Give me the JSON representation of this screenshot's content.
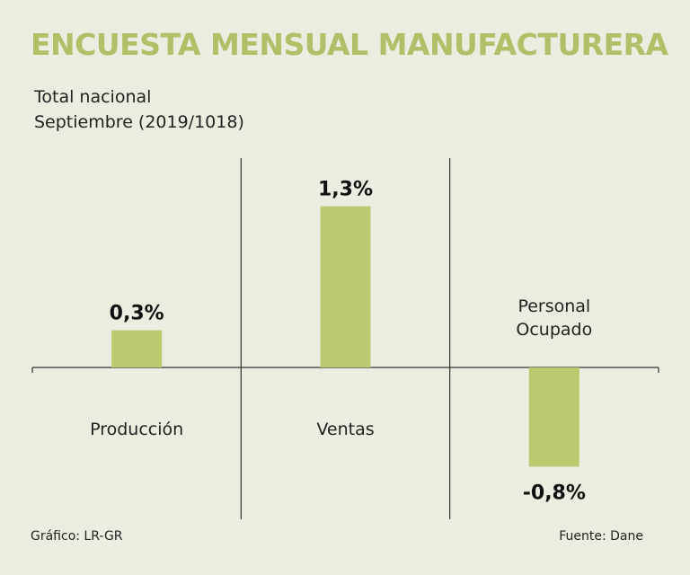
{
  "header": {
    "title": "ENCUESTA MENSUAL MANUFACTURERA",
    "subtitle_line1": "Total nacional",
    "subtitle_line2": "Septiembre (2019/1018)"
  },
  "footer": {
    "credit": "Gráfico: LR-GR",
    "source": "Fuente: Dane"
  },
  "colors": {
    "background": "#eaede0",
    "bar": "#bcc96e",
    "title": "#afc068",
    "axis": "#333333"
  },
  "chart_data": {
    "type": "bar",
    "title": "ENCUESTA MENSUAL MANUFACTURERA",
    "xlabel": "",
    "ylabel": "",
    "categories": [
      "Producción",
      "Ventas",
      "Personal Ocupado"
    ],
    "category_lines": [
      [
        "Producción"
      ],
      [
        "Ventas"
      ],
      [
        "Personal",
        "Ocupado"
      ]
    ],
    "values": [
      0.3,
      1.3,
      -0.8
    ],
    "value_labels": [
      "0,3%",
      "1,3%",
      "-0,8%"
    ],
    "unit": "%",
    "ylim": [
      -1.0,
      1.5
    ],
    "grid": false,
    "legend": "none"
  }
}
